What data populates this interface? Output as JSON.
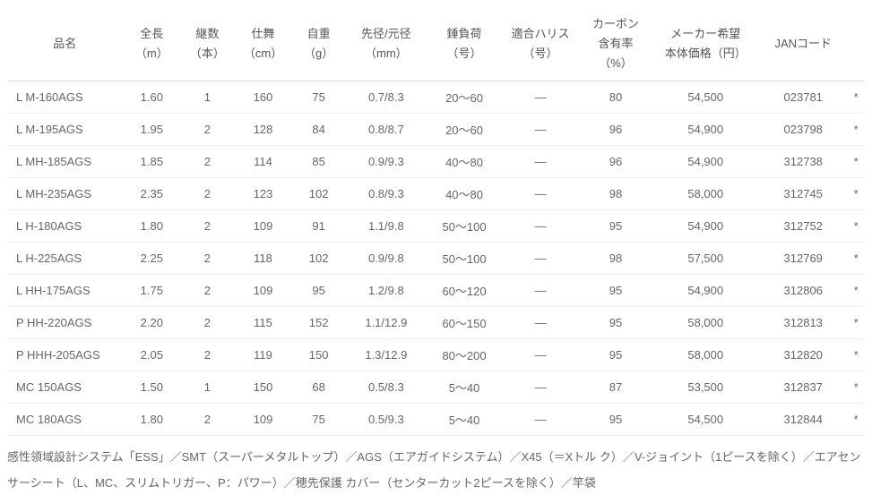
{
  "table": {
    "columns": [
      {
        "l1": "品名",
        "l2": ""
      },
      {
        "l1": "全長",
        "l2": "（m）"
      },
      {
        "l1": "継数",
        "l2": "（本）"
      },
      {
        "l1": "仕舞",
        "l2": "（cm）"
      },
      {
        "l1": "自重",
        "l2": "（g）"
      },
      {
        "l1": "先径/元径",
        "l2": "（mm）"
      },
      {
        "l1": "錘負荷",
        "l2": "（号）"
      },
      {
        "l1": "適合ハリス",
        "l2": "（号）"
      },
      {
        "l1": "カーボン",
        "l2": "含有率",
        "l3": "（%）"
      },
      {
        "l1": "メーカー希望",
        "l2": "本体価格（円）"
      },
      {
        "l1": "JANコード",
        "l2": ""
      }
    ],
    "col_widths": [
      "118px",
      "60px",
      "54px",
      "60px",
      "54px",
      "84px",
      "76px",
      "80px",
      "74px",
      "110px",
      "90px",
      "18px"
    ],
    "rows": [
      {
        "name": "L M-160AGS",
        "len": "1.60",
        "pc": "1",
        "cl": "160",
        "wt": "75",
        "dia": "0.7/8.3",
        "sink": "20～60",
        "line": "―",
        "carbon": "80",
        "price": "54,500",
        "jan": "023781",
        "mark": "*"
      },
      {
        "name": "L M-195AGS",
        "len": "1.95",
        "pc": "2",
        "cl": "128",
        "wt": "84",
        "dia": "0.8/8.7",
        "sink": "20～60",
        "line": "―",
        "carbon": "96",
        "price": "54,900",
        "jan": "023798",
        "mark": "*"
      },
      {
        "name": "L MH-185AGS",
        "len": "1.85",
        "pc": "2",
        "cl": "114",
        "wt": "85",
        "dia": "0.9/9.3",
        "sink": "40～80",
        "line": "―",
        "carbon": "96",
        "price": "54,900",
        "jan": "312738",
        "mark": "*"
      },
      {
        "name": "L MH-235AGS",
        "len": "2.35",
        "pc": "2",
        "cl": "123",
        "wt": "102",
        "dia": "0.8/9.3",
        "sink": "40～80",
        "line": "―",
        "carbon": "98",
        "price": "58,000",
        "jan": "312745",
        "mark": "*"
      },
      {
        "name": "L H-180AGS",
        "len": "1.80",
        "pc": "2",
        "cl": "109",
        "wt": "91",
        "dia": "1.1/9.8",
        "sink": "50～100",
        "line": "―",
        "carbon": "95",
        "price": "54,900",
        "jan": "312752",
        "mark": "*"
      },
      {
        "name": "L H-225AGS",
        "len": "2.25",
        "pc": "2",
        "cl": "118",
        "wt": "102",
        "dia": "0.9/9.8",
        "sink": "50～100",
        "line": "―",
        "carbon": "98",
        "price": "57,500",
        "jan": "312769",
        "mark": "*"
      },
      {
        "name": "L HH-175AGS",
        "len": "1.75",
        "pc": "2",
        "cl": "109",
        "wt": "95",
        "dia": "1.2/9.8",
        "sink": "60～120",
        "line": "―",
        "carbon": "95",
        "price": "54,900",
        "jan": "312806",
        "mark": "*"
      },
      {
        "name": "P HH-220AGS",
        "len": "2.20",
        "pc": "2",
        "cl": "115",
        "wt": "152",
        "dia": "1.1/12.9",
        "sink": "60～150",
        "line": "―",
        "carbon": "95",
        "price": "58,000",
        "jan": "312813",
        "mark": "*"
      },
      {
        "name": "P HHH-205AGS",
        "len": "2.05",
        "pc": "2",
        "cl": "119",
        "wt": "150",
        "dia": "1.3/12.9",
        "sink": "80～200",
        "line": "―",
        "carbon": "95",
        "price": "58,000",
        "jan": "312820",
        "mark": "*"
      },
      {
        "name": "MC 150AGS",
        "len": "1.50",
        "pc": "1",
        "cl": "150",
        "wt": "68",
        "dia": "0.5/8.3",
        "sink": "5～40",
        "line": "―",
        "carbon": "87",
        "price": "53,500",
        "jan": "312837",
        "mark": "*"
      },
      {
        "name": "MC 180AGS",
        "len": "1.80",
        "pc": "2",
        "cl": "109",
        "wt": "75",
        "dia": "0.5/9.3",
        "sink": "5～40",
        "line": "―",
        "carbon": "95",
        "price": "54,500",
        "jan": "312844",
        "mark": "*"
      }
    ]
  },
  "footnote": "感性領域設計システム「ESS」／SMT（スーパーメタルトップ）／AGS（エアガイドシステム）／X45（＝Xトル ク）／V-ジョイント（1ピースを除く）／エアセンサーシート（L、MC、スリムトリガー、P：パワー）／穂先保護 カバー（センターカット2ピースを除く）／竿袋"
}
